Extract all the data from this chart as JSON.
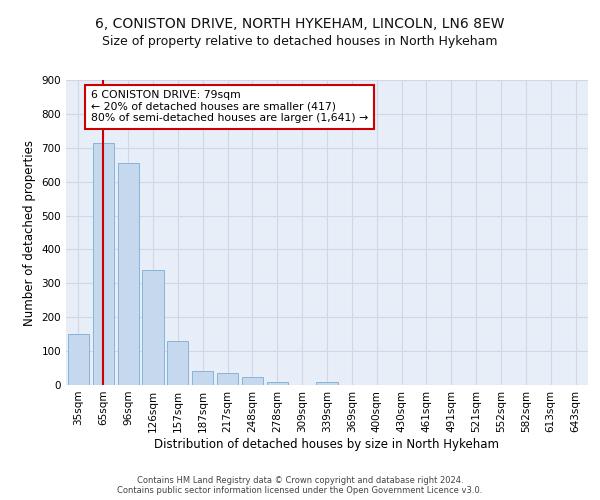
{
  "title": "6, CONISTON DRIVE, NORTH HYKEHAM, LINCOLN, LN6 8EW",
  "subtitle": "Size of property relative to detached houses in North Hykeham",
  "xlabel": "Distribution of detached houses by size in North Hykeham",
  "ylabel": "Number of detached properties",
  "footer_line1": "Contains HM Land Registry data © Crown copyright and database right 2024.",
  "footer_line2": "Contains public sector information licensed under the Open Government Licence v3.0.",
  "categories": [
    "35sqm",
    "65sqm",
    "96sqm",
    "126sqm",
    "157sqm",
    "187sqm",
    "217sqm",
    "248sqm",
    "278sqm",
    "309sqm",
    "339sqm",
    "369sqm",
    "400sqm",
    "430sqm",
    "461sqm",
    "491sqm",
    "521sqm",
    "552sqm",
    "582sqm",
    "613sqm",
    "643sqm"
  ],
  "bar_values": [
    150,
    715,
    655,
    340,
    130,
    42,
    35,
    25,
    10,
    0,
    8,
    0,
    0,
    0,
    0,
    0,
    0,
    0,
    0,
    0,
    0
  ],
  "bar_color": "#c5d8ee",
  "bar_edge_color": "#7aadd4",
  "vline_x": 1,
  "vline_color": "#cc0000",
  "annotation_box_text": "6 CONISTON DRIVE: 79sqm\n← 20% of detached houses are smaller (417)\n80% of semi-detached houses are larger (1,641) →",
  "annotation_box_color": "#cc0000",
  "annotation_box_fill": "#ffffff",
  "ylim": [
    0,
    900
  ],
  "yticks": [
    0,
    100,
    200,
    300,
    400,
    500,
    600,
    700,
    800,
    900
  ],
  "grid_color": "#d0d8e8",
  "bg_color": "#e8eef8",
  "title_fontsize": 10,
  "subtitle_fontsize": 9,
  "ylabel_fontsize": 8.5,
  "xlabel_fontsize": 8.5,
  "tick_fontsize": 7.5,
  "footer_fontsize": 6,
  "ann_fontsize": 7.8
}
